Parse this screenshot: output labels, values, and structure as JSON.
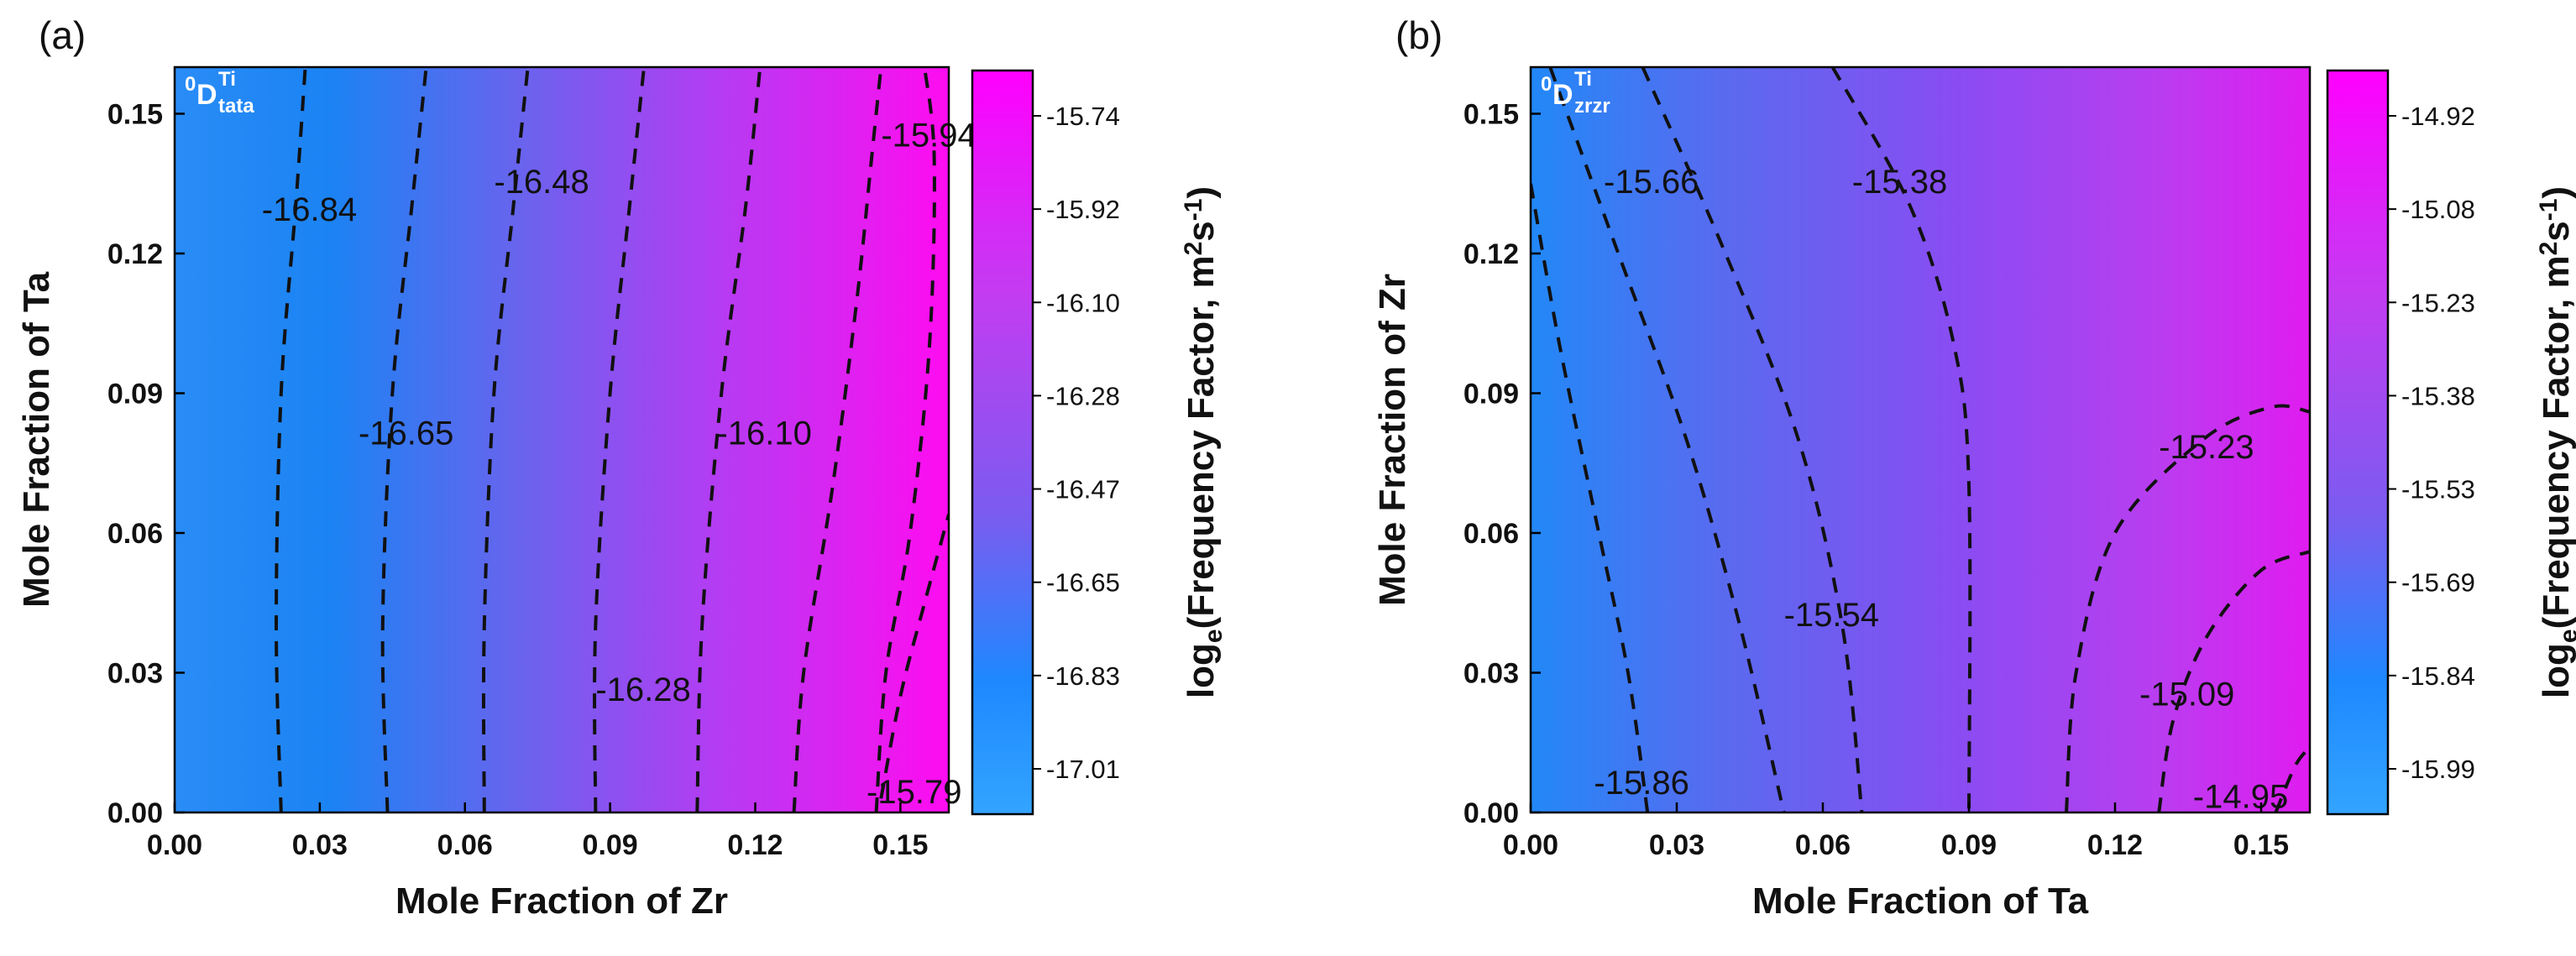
{
  "chart_data": [
    {
      "type": "heatmap",
      "panel": "(a)",
      "corner_label": {
        "prefix": "0",
        "main": "D",
        "sub": "tata",
        "sup": "Ti"
      },
      "xlabel": "Mole Fraction of Zr",
      "ylabel": "Mole Fraction of  Ta",
      "xlim": [
        0,
        0.16
      ],
      "ylim": [
        0,
        0.16
      ],
      "xticks": [
        "0.00",
        "0.03",
        "0.06",
        "0.09",
        "0.12",
        "0.15"
      ],
      "yticks": [
        "0.00",
        "0.03",
        "0.06",
        "0.09",
        "0.12",
        "0.15"
      ],
      "colorbar": {
        "label_main": "log",
        "label_sub": "e",
        "label_rest": "(Frequency Factor, m",
        "label_sup": "2",
        "label_mid": "s",
        "label_sup2": "-1",
        "label_end": ")",
        "ticks": [
          "-15.74",
          "-15.92",
          "-16.10",
          "-16.28",
          "-16.47",
          "-16.65",
          "-16.83",
          "-17.01"
        ],
        "colors": [
          "#ff00ff",
          "#1e88ff"
        ]
      },
      "gradient": {
        "direction": "x",
        "stops": [
          {
            "pos": 0.0,
            "color": "#2a8cf6"
          },
          {
            "pos": 0.2,
            "color": "#1b83f3"
          },
          {
            "pos": 0.45,
            "color": "#6a63ee"
          },
          {
            "pos": 0.7,
            "color": "#b43cf2"
          },
          {
            "pos": 1.0,
            "color": "#ff0cf0"
          }
        ]
      },
      "contours": [
        {
          "points": [
            [
              0.022,
              0.0
            ],
            [
              0.021,
              0.04
            ],
            [
              0.022,
              0.09
            ],
            [
              0.025,
              0.13
            ],
            [
              0.027,
              0.16
            ]
          ]
        },
        {
          "points": [
            [
              0.044,
              0.0
            ],
            [
              0.043,
              0.04
            ],
            [
              0.045,
              0.09
            ],
            [
              0.049,
              0.13
            ],
            [
              0.052,
              0.16
            ]
          ]
        },
        {
          "points": [
            [
              0.064,
              0.0
            ],
            [
              0.064,
              0.04
            ],
            [
              0.066,
              0.09
            ],
            [
              0.07,
              0.13
            ],
            [
              0.073,
              0.16
            ]
          ]
        },
        {
          "points": [
            [
              0.087,
              0.0
            ],
            [
              0.087,
              0.04
            ],
            [
              0.09,
              0.09
            ],
            [
              0.094,
              0.13
            ],
            [
              0.097,
              0.16
            ]
          ]
        },
        {
          "points": [
            [
              0.108,
              0.0
            ],
            [
              0.109,
              0.04
            ],
            [
              0.113,
              0.09
            ],
            [
              0.118,
              0.13
            ],
            [
              0.121,
              0.16
            ]
          ]
        },
        {
          "points": [
            [
              0.128,
              0.0
            ],
            [
              0.13,
              0.03
            ],
            [
              0.136,
              0.07
            ],
            [
              0.141,
              0.11
            ],
            [
              0.144,
              0.14
            ],
            [
              0.146,
              0.16
            ]
          ]
        },
        {
          "points": [
            [
              0.145,
              0.0
            ],
            [
              0.147,
              0.03
            ],
            [
              0.152,
              0.06
            ],
            [
              0.156,
              0.1
            ],
            [
              0.157,
              0.14
            ],
            [
              0.155,
              0.16
            ]
          ]
        },
        {
          "points": [
            [
              0.146,
              0.003
            ],
            [
              0.15,
              0.025
            ],
            [
              0.155,
              0.045
            ],
            [
              0.16,
              0.064
            ]
          ]
        }
      ],
      "contour_labels": [
        {
          "text": "-16.84",
          "x": 0.018,
          "y": 0.127
        },
        {
          "text": "-16.48",
          "x": 0.066,
          "y": 0.133
        },
        {
          "text": "-15.94",
          "x": 0.146,
          "y": 0.143
        },
        {
          "text": "-16.65",
          "x": 0.038,
          "y": 0.079
        },
        {
          "text": "-16.10",
          "x": 0.112,
          "y": 0.079
        },
        {
          "text": "-16.28",
          "x": 0.087,
          "y": 0.024
        },
        {
          "text": "-15.79",
          "x": 0.143,
          "y": 0.002
        }
      ]
    },
    {
      "type": "heatmap",
      "panel": "(b)",
      "corner_label": {
        "prefix": "0",
        "main": "D",
        "sub": "zrzr",
        "sup": "Ti"
      },
      "xlabel": "Mole Fraction of Ta",
      "ylabel": "Mole Fraction of  Zr",
      "xlim": [
        0,
        0.16
      ],
      "ylim": [
        0,
        0.16
      ],
      "xticks": [
        "0.00",
        "0.03",
        "0.06",
        "0.09",
        "0.12",
        "0.15"
      ],
      "yticks": [
        "0.00",
        "0.03",
        "0.06",
        "0.09",
        "0.12",
        "0.15"
      ],
      "colorbar": {
        "label_main": "log",
        "label_sub": "e",
        "label_rest": "(Frequency Factor, m",
        "label_sup": "2",
        "label_mid": "s",
        "label_sup2": "-1",
        "label_end": ")",
        "ticks": [
          "-14.92",
          "-15.08",
          "-15.23",
          "-15.38",
          "-15.53",
          "-15.69",
          "-15.84",
          "-15.99"
        ],
        "colors": [
          "#ff00ff",
          "#1e88ff"
        ]
      },
      "gradient": {
        "direction": "x",
        "stops": [
          {
            "pos": 0.0,
            "color": "#2288f7"
          },
          {
            "pos": 0.25,
            "color": "#5a6aef"
          },
          {
            "pos": 0.55,
            "color": "#8a4cf2"
          },
          {
            "pos": 0.8,
            "color": "#b83ef0"
          },
          {
            "pos": 1.0,
            "color": "#e01cf0"
          }
        ]
      },
      "contours": [
        {
          "points": [
            [
              0.0,
              0.135
            ],
            [
              0.006,
              0.1
            ],
            [
              0.014,
              0.06
            ],
            [
              0.02,
              0.03
            ],
            [
              0.024,
              0.0
            ]
          ]
        },
        {
          "points": [
            [
              0.004,
              0.16
            ],
            [
              0.018,
              0.12
            ],
            [
              0.032,
              0.08
            ],
            [
              0.043,
              0.04
            ],
            [
              0.052,
              0.0
            ]
          ]
        },
        {
          "points": [
            [
              0.023,
              0.16
            ],
            [
              0.04,
              0.12
            ],
            [
              0.055,
              0.08
            ],
            [
              0.064,
              0.04
            ],
            [
              0.068,
              0.0
            ]
          ]
        },
        {
          "points": [
            [
              0.062,
              0.16
            ],
            [
              0.078,
              0.13
            ],
            [
              0.087,
              0.1
            ],
            [
              0.09,
              0.07
            ],
            [
              0.09,
              0.0
            ]
          ]
        },
        {
          "points": [
            [
              0.11,
              0.0
            ],
            [
              0.112,
              0.03
            ],
            [
              0.12,
              0.06
            ],
            [
              0.138,
              0.08
            ],
            [
              0.152,
              0.087
            ],
            [
              0.16,
              0.086
            ]
          ]
        },
        {
          "points": [
            [
              0.129,
              0.0
            ],
            [
              0.132,
              0.02
            ],
            [
              0.139,
              0.038
            ],
            [
              0.15,
              0.052
            ],
            [
              0.16,
              0.056
            ]
          ]
        },
        {
          "points": [
            [
              0.153,
              0.0
            ],
            [
              0.157,
              0.01
            ],
            [
              0.16,
              0.014
            ]
          ]
        }
      ],
      "contour_labels": [
        {
          "text": "-15.66",
          "x": 0.015,
          "y": 0.133
        },
        {
          "text": "-15.38",
          "x": 0.066,
          "y": 0.133
        },
        {
          "text": "-15.23",
          "x": 0.129,
          "y": 0.076
        },
        {
          "text": "-15.54",
          "x": 0.052,
          "y": 0.04
        },
        {
          "text": "-15.09",
          "x": 0.125,
          "y": 0.023
        },
        {
          "text": "-15.86",
          "x": 0.013,
          "y": 0.004
        },
        {
          "text": "-14.95",
          "x": 0.136,
          "y": 0.001
        }
      ]
    }
  ]
}
